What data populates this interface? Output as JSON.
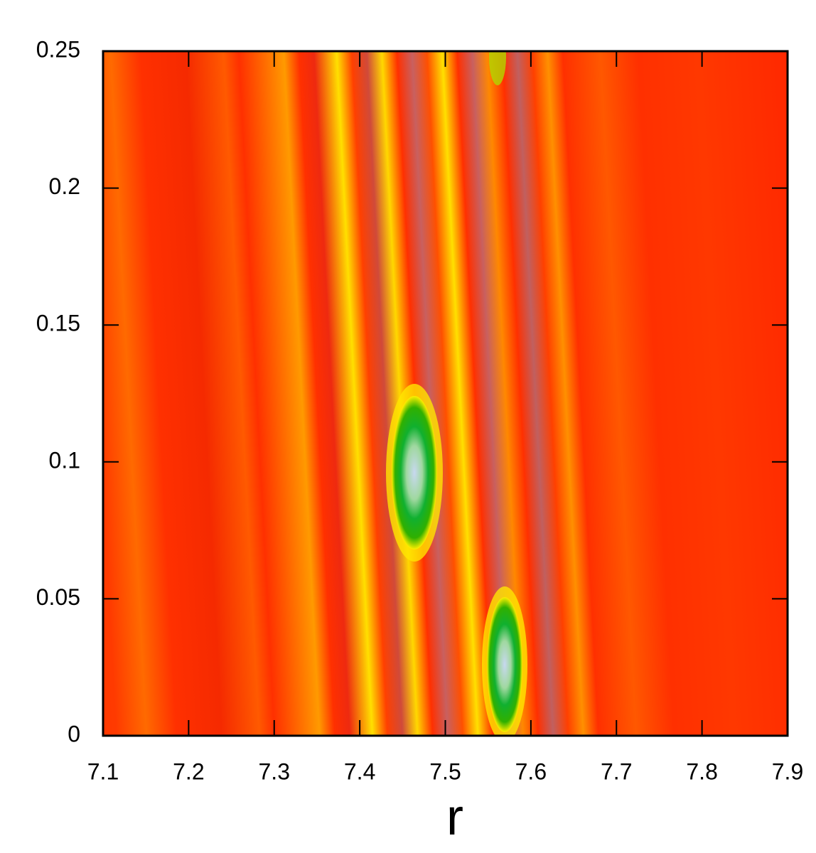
{
  "chart_data": {
    "type": "heatmap",
    "x_label": "r",
    "xlim": [
      7.1,
      7.9
    ],
    "xticks": [
      7.1,
      7.2,
      7.3,
      7.4,
      7.5,
      7.6,
      7.7,
      7.8,
      7.9
    ],
    "ylim": [
      0,
      0.25
    ],
    "yticks": [
      0,
      0.05,
      0.1,
      0.15,
      0.2,
      0.25
    ]
  }
}
